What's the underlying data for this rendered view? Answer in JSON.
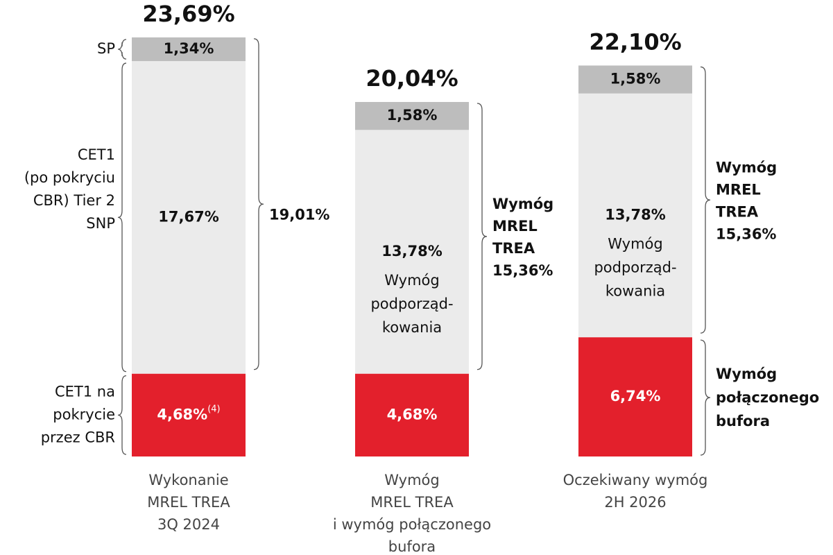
{
  "chart_data": {
    "type": "stacked_bar",
    "categories": [
      "Wykonanie\nMREL TREA\n3Q 2024",
      "Wymóg\nMREL TREA\ni wymóg połączonego\nbufora",
      "Oczekiwany wymóg\n2H 2026"
    ],
    "series": [
      {
        "name": "CET1 na\npokrycie\nprzez CBR",
        "color": "#e3202c",
        "values": [
          4.68,
          4.68,
          6.74
        ],
        "value_labels": [
          "4,68%",
          "4,68%",
          "6,74%"
        ]
      },
      {
        "name": "CET1\n(po pokryciu\nCBR) Tier 2\nSNP",
        "color": "#ebebeb",
        "values": [
          17.67,
          13.78,
          13.78
        ],
        "value_labels": [
          "17,67%",
          "13,78%",
          "13,78%"
        ]
      },
      {
        "name": "SP",
        "color": "#bdbdbd",
        "values": [
          1.34,
          1.58,
          1.58
        ],
        "value_labels": [
          "1,34%",
          "1,58%",
          "1,58%"
        ]
      }
    ],
    "totals": [
      23.69,
      20.04,
      22.1
    ],
    "total_labels": [
      "23,69%",
      "20,04%",
      "22,10%"
    ],
    "annotations": {
      "footnote": "(4)",
      "subordination": "Wymóg\npodporząd-\nkowania",
      "mrel_labels": [
        "19,01%",
        "Wymóg\nMREL\nTREA\n15,36%",
        "Wymóg\nMREL\nTREA\n15,36%"
      ],
      "buffer_label": "Wymóg\npołączonego\nbufora"
    }
  }
}
